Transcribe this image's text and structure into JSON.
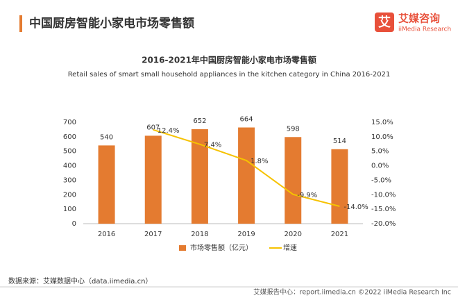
{
  "header": {
    "title": "中国厨房智能小家电市场零售额",
    "logo_mark": "艾",
    "logo_name": "艾媒咨询",
    "logo_sub": "iiMedia Research"
  },
  "chart_data": {
    "type": "bar",
    "title": "2016-2021年中国厨房智能小家电市场零售额",
    "subtitle": "Retail sales of smart small household appliances in the kitchen category in China 2016-2021",
    "categories": [
      "2016",
      "2017",
      "2018",
      "2019",
      "2020",
      "2021"
    ],
    "series": [
      {
        "name": "市场零售额（亿元）",
        "type": "bar",
        "color": "#e47b30",
        "values": [
          540,
          607,
          652,
          664,
          598,
          514
        ]
      },
      {
        "name": "增速",
        "type": "line",
        "axis": "y2",
        "color": "#f6c200",
        "values": [
          null,
          12.4,
          7.4,
          1.8,
          -9.9,
          -14.0
        ],
        "value_labels": [
          null,
          "12.4%",
          "7.4%",
          "1.8%",
          "-9.9%",
          "-14.0%"
        ]
      }
    ],
    "ylim": [
      0,
      700
    ],
    "yticks": [
      0,
      100,
      200,
      300,
      400,
      500,
      600,
      700
    ],
    "y2lim": [
      -20,
      15
    ],
    "y2ticks": [
      {
        "value": -20,
        "label": "-20.0%"
      },
      {
        "value": -15,
        "label": "-15.0%"
      },
      {
        "value": -10,
        "label": "-10.0%"
      },
      {
        "value": -5,
        "label": "-5.0%"
      },
      {
        "value": 0,
        "label": "0.0%"
      },
      {
        "value": 5,
        "label": "5.0%"
      },
      {
        "value": 10,
        "label": "10.0%"
      },
      {
        "value": 15,
        "label": "15.0%"
      }
    ],
    "grid": false,
    "legend": "bottom"
  },
  "footer": {
    "source": "数据来源：艾媒数据中心（data.iimedia.cn）",
    "credit": "艾媒报告中心：report.iimedia.cn  ©2022  iiMedia Research  Inc"
  }
}
